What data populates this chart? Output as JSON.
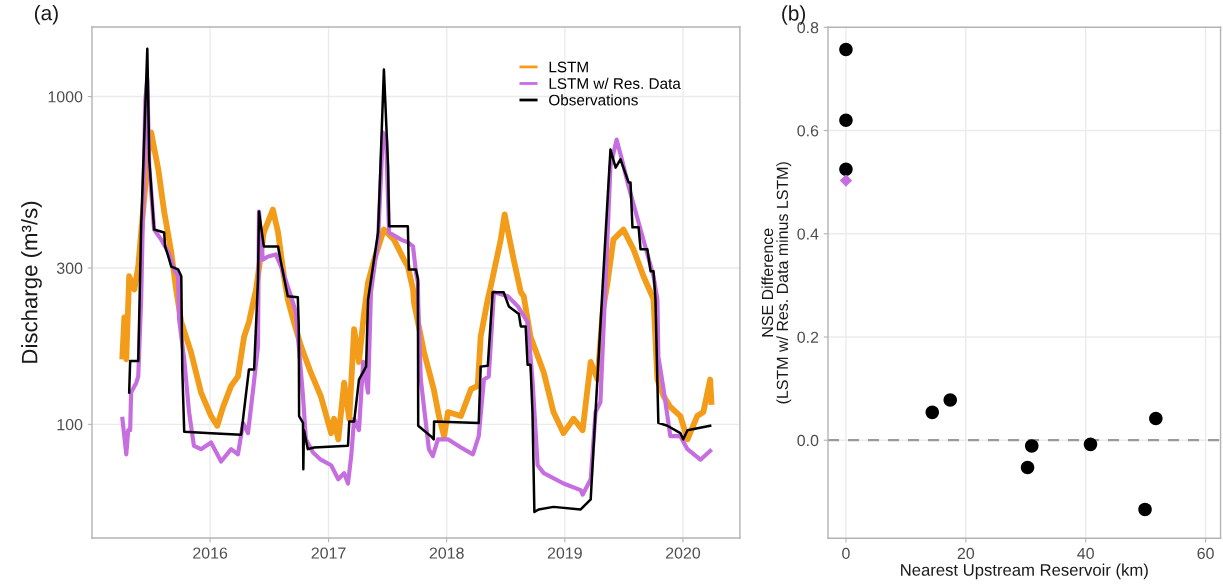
{
  "chart_data": [
    {
      "type": "line",
      "title": "(a)",
      "ylabel": "Discharge (m³/s)",
      "log": "y",
      "grid": true,
      "legend": "top right",
      "marker": "none",
      "line_style": "solid",
      "xlim": [
        "2015-01-01",
        "2020-06-25"
      ],
      "xticks": [
        {
          "value": "2016-01-01",
          "label": "2016"
        },
        {
          "value": "2017-01-01",
          "label": "2017"
        },
        {
          "value": "2018-01-01",
          "label": "2018"
        },
        {
          "value": "2019-01-01",
          "label": "2019"
        },
        {
          "value": "2020-01-01",
          "label": "2020"
        }
      ],
      "ylim": [
        45,
        1630
      ],
      "yticks": [
        100,
        300,
        1000
      ],
      "series": [
        {
          "name": "LSTM",
          "color": "#f39c1a",
          "x": [
            "2015-04-05",
            "2015-04-11",
            "2015-04-17",
            "2015-04-26",
            "2015-05-12",
            "2015-05-24",
            "2015-06-02",
            "2015-06-24",
            "2015-07-03",
            "2015-07-25",
            "2015-08-12",
            "2015-09-03",
            "2015-09-18",
            "2015-10-04",
            "2015-11-03",
            "2015-12-04",
            "2016-01-04",
            "2016-01-23",
            "2016-02-10",
            "2016-03-06",
            "2016-03-27",
            "2016-04-15",
            "2016-04-30",
            "2016-05-22",
            "2016-06-15",
            "2016-07-13",
            "2016-07-29",
            "2016-08-16",
            "2016-08-28",
            "2016-09-16",
            "2016-10-08",
            "2016-11-07",
            "2016-12-08",
            "2017-01-09",
            "2017-01-18",
            "2017-01-31",
            "2017-02-18",
            "2017-03-06",
            "2017-03-21",
            "2017-04-05",
            "2017-04-21",
            "2017-05-03",
            "2017-05-22",
            "2017-06-21",
            "2017-07-22",
            "2017-08-22",
            "2017-09-03",
            "2017-09-19",
            "2017-09-22",
            "2017-10-23",
            "2017-11-22",
            "2017-12-08",
            "2017-12-24",
            "2018-01-05",
            "2018-02-14",
            "2018-03-17",
            "2018-04-07",
            "2018-04-16",
            "2018-05-08",
            "2018-05-17",
            "2018-06-17",
            "2018-06-29",
            "2018-07-27",
            "2018-08-18",
            "2018-08-27",
            "2018-09-17",
            "2018-10-28",
            "2018-11-27",
            "2018-12-28",
            "2019-01-28",
            "2019-02-25",
            "2019-03-22",
            "2019-04-12",
            "2019-04-28",
            "2019-05-13",
            "2019-05-31",
            "2019-07-01",
            "2019-08-01",
            "2019-09-01",
            "2019-10-02",
            "2019-10-14",
            "2019-11-02",
            "2019-11-23",
            "2019-12-24",
            "2020-01-15",
            "2020-02-14",
            "2020-03-04",
            "2020-03-25",
            "2020-03-29"
          ],
          "values": [
            161,
            212,
            158,
            283,
            258,
            303,
            385,
            675,
            777,
            599,
            446,
            335,
            258,
            205,
            166,
            125,
            106,
            99,
            113,
            131,
            140,
            185,
            205,
            258,
            385,
            452,
            385,
            283,
            241,
            205,
            173,
            144,
            122,
            94,
            104,
            90,
            134,
            104,
            195,
            155,
            220,
            271,
            318,
            393,
            366,
            318,
            303,
            258,
            235,
            166,
            128,
            106,
            92,
            109,
            106,
            128,
            131,
            185,
            241,
            263,
            366,
            437,
            318,
            253,
            246,
            185,
            144,
            109,
            94,
            104,
            96,
            155,
            137,
            220,
            271,
            366,
            393,
            342,
            283,
            241,
            137,
            122,
            113,
            106,
            90,
            106,
            109,
            137,
            117
          ]
        },
        {
          "name": "LSTM w/ Res. Data",
          "color": "#c66ee0",
          "x": [
            "2015-04-05",
            "2015-04-17",
            "2015-04-23",
            "2015-04-29",
            "2015-05-02",
            "2015-05-18",
            "2015-05-24",
            "2015-06-02",
            "2015-06-15",
            "2015-06-21",
            "2015-06-27",
            "2015-07-12",
            "2015-08-03",
            "2015-08-25",
            "2015-09-12",
            "2015-09-24",
            "2015-09-27",
            "2015-10-13",
            "2015-10-28",
            "2015-11-12",
            "2015-12-04",
            "2016-01-04",
            "2016-02-04",
            "2016-03-06",
            "2016-03-27",
            "2016-04-12",
            "2016-04-27",
            "2016-05-13",
            "2016-05-28",
            "2016-05-31",
            "2016-06-12",
            "2016-06-28",
            "2016-07-22",
            "2016-08-07",
            "2016-09-07",
            "2016-09-22",
            "2016-10-01",
            "2016-10-14",
            "2016-10-23",
            "2016-11-14",
            "2016-12-08",
            "2017-01-09",
            "2017-01-31",
            "2017-02-18",
            "2017-03-02",
            "2017-03-12",
            "2017-03-21",
            "2017-04-05",
            "2017-04-18",
            "2017-05-03",
            "2017-05-12",
            "2017-06-03",
            "2017-06-18",
            "2017-06-28",
            "2017-07-07",
            "2017-08-13",
            "2017-09-03",
            "2017-09-19",
            "2017-09-28",
            "2017-10-04",
            "2017-10-05",
            "2017-10-13",
            "2017-11-07",
            "2017-11-19",
            "2017-12-05",
            "2018-01-05",
            "2018-02-14",
            "2018-03-23",
            "2018-04-10",
            "2018-04-26",
            "2018-05-11",
            "2018-05-27",
            "2018-07-09",
            "2018-08-09",
            "2018-09-08",
            "2018-09-23",
            "2018-10-09",
            "2018-10-28",
            "2018-12-28",
            "2019-02-19",
            "2019-02-25",
            "2019-03-22",
            "2019-04-06",
            "2019-04-21",
            "2019-05-22",
            "2019-06-10",
            "2019-06-28",
            "2019-07-17",
            "2019-08-23",
            "2019-10-02",
            "2019-10-14",
            "2019-10-17",
            "2019-11-02",
            "2019-11-23",
            "2019-12-24",
            "2020-01-15",
            "2020-02-24",
            "2020-03-25"
          ],
          "values": [
            104,
            81,
            96,
            96,
            125,
            134,
            140,
            241,
            979,
            1127,
            612,
            393,
            366,
            335,
            297,
            283,
            210,
            158,
            109,
            86,
            84,
            88,
            77,
            84,
            81,
            101,
            94,
            128,
            173,
            446,
            318,
            325,
            330,
            303,
            246,
            220,
            173,
            122,
            90,
            82,
            78,
            75,
            68,
            71,
            66,
            80,
            104,
            96,
            155,
            125,
            253,
            366,
            777,
            739,
            385,
            366,
            359,
            349,
            291,
            271,
            235,
            137,
            84,
            80,
            90,
            90,
            85,
            81,
            92,
            137,
            140,
            253,
            246,
            229,
            205,
            137,
            75,
            71,
            66,
            63,
            61,
            68,
            109,
            117,
            612,
            739,
            634,
            532,
            393,
            283,
            241,
            161,
            128,
            92,
            92,
            84,
            78,
            83
          ]
        },
        {
          "name": "Observations",
          "color": "#000000",
          "x": [
            "2015-04-26",
            "2015-04-29",
            "2015-05-24",
            "2015-06-02",
            "2015-06-21",
            "2015-06-27",
            "2015-07-12",
            "2015-08-12",
            "2015-08-15",
            "2015-08-25",
            "2015-09-03",
            "2015-09-24",
            "2015-10-04",
            "2015-10-07",
            "2015-10-13",
            "2016-01-04",
            "2016-04-06",
            "2016-04-30",
            "2016-05-16",
            "2016-05-28",
            "2016-05-31",
            "2016-06-15",
            "2016-07-29",
            "2016-08-07",
            "2016-08-28",
            "2016-09-28",
            "2016-10-01",
            "2016-10-02",
            "2016-10-14",
            "2016-10-15",
            "2016-10-17",
            "2016-10-29",
            "2016-11-17",
            "2017-03-02",
            "2017-03-06",
            "2017-03-21",
            "2017-04-05",
            "2017-04-27",
            "2017-05-03",
            "2017-06-03",
            "2017-06-21",
            "2017-07-04",
            "2017-07-07",
            "2017-09-03",
            "2017-09-06",
            "2017-09-28",
            "2017-10-04",
            "2017-10-05",
            "2017-11-13",
            "2017-11-22",
            "2017-11-23",
            "2018-04-10",
            "2018-04-16",
            "2018-05-08",
            "2018-05-23",
            "2018-06-26",
            "2018-07-12",
            "2018-08-12",
            "2018-08-18",
            "2018-09-02",
            "2018-09-08",
            "2018-09-17",
            "2018-09-23",
            "2018-09-29",
            "2018-10-12",
            "2018-11-27",
            "2019-02-19",
            "2019-03-22",
            "2019-03-31",
            "2019-05-13",
            "2019-05-22",
            "2019-06-07",
            "2019-06-22",
            "2019-07-17",
            "2019-07-23",
            "2019-07-29",
            "2019-08-17",
            "2019-08-23",
            "2019-09-13",
            "2019-09-23",
            "2019-10-02",
            "2019-10-08",
            "2019-10-17",
            "2019-11-14",
            "2019-12-24",
            "2020-01-02",
            "2020-01-15",
            "2020-03-25"
          ],
          "values": [
            125,
            156,
            156,
            402,
            1400,
            643,
            393,
            385,
            349,
            325,
            303,
            297,
            283,
            147,
            95,
            94,
            93,
            147,
            147,
            277,
            446,
            349,
            349,
            312,
            246,
            244,
            199,
            106,
            101,
            73,
            96,
            84,
            85,
            86,
            102,
            102,
            137,
            150,
            240,
            385,
            1209,
            612,
            402,
            402,
            297,
            297,
            278,
            99,
            92,
            90,
            102,
            101,
            150,
            151,
            253,
            253,
            229,
            217,
            199,
            199,
            152,
            152,
            109,
            54,
            55,
            56,
            55,
            59,
            86,
            485,
            689,
            607,
            643,
            547,
            547,
            399,
            399,
            342,
            342,
            293,
            293,
            241,
            101,
            99,
            94,
            90,
            96,
            99
          ]
        }
      ]
    },
    {
      "type": "scatter",
      "title": "(b)",
      "xlabel": "Nearest Upstream Reservoir (km)",
      "ylabel": "NSE Difference\n(LSTM w/ Res. Data minus LSTM)",
      "grid": true,
      "xlim": [
        -3,
        62.5
      ],
      "xticks": [
        0,
        20,
        40,
        60
      ],
      "ylim": [
        -0.19,
        0.8
      ],
      "yticks": [
        {
          "value": 0,
          "label": "0.0"
        },
        0.2,
        0.4,
        0.6,
        0.8
      ],
      "ref_lines": [
        {
          "axis": "y",
          "value": 0,
          "color": "#9a9a9a",
          "line_style": "dashed"
        }
      ],
      "series": [
        {
          "color": "#000000",
          "marker": "circle",
          "x": [
            0,
            0,
            0,
            14.4,
            17.4,
            31.0,
            30.3,
            40.8,
            51.7,
            49.9
          ],
          "values": [
            0.757,
            0.62,
            0.525,
            0.054,
            0.078,
            -0.011,
            -0.053,
            -0.008,
            0.042,
            -0.134
          ]
        },
        {
          "color": "#c66ee0",
          "marker": "diamond",
          "x": [
            0
          ],
          "values": [
            0.503
          ]
        }
      ]
    }
  ]
}
